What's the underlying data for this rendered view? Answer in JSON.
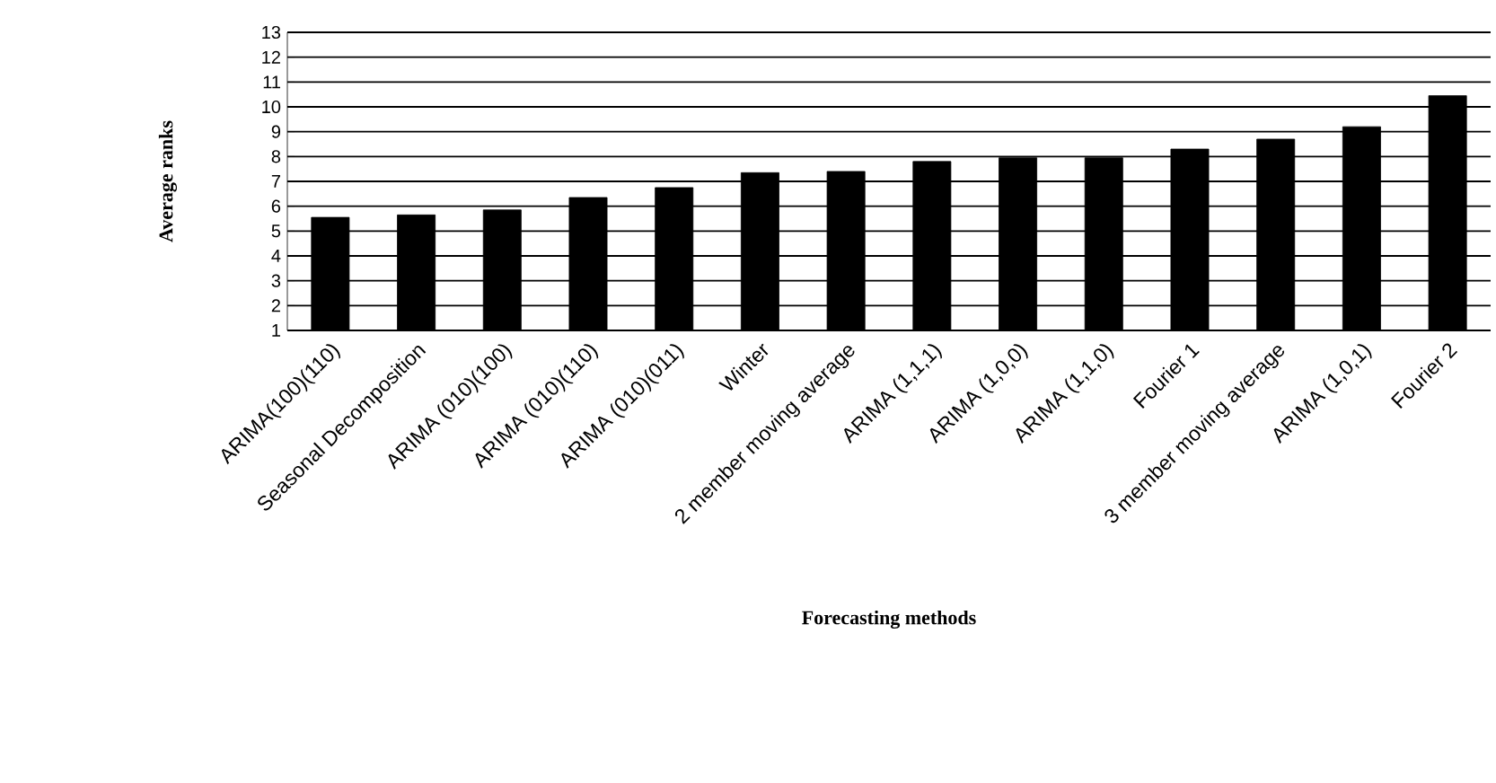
{
  "chart_data": {
    "type": "bar",
    "xlabel": "Forecasting methods",
    "ylabel": "Average ranks",
    "categories": [
      "ARIMA(100)(110)",
      "Seasonal Decomposition",
      "ARIMA (010)(100)",
      "ARIMA (010)(110)",
      "ARIMA (010)(011)",
      "Winter",
      "2 member moving average",
      "ARIMA (1,1,1)",
      "ARIMA (1,0,0)",
      "ARIMA (1,1,0)",
      "Fourier 1",
      "3 member moving average",
      "ARIMA (1,0,1)",
      "Fourier 2"
    ],
    "values": [
      5.55,
      5.65,
      5.85,
      6.35,
      6.75,
      7.35,
      7.4,
      7.8,
      7.95,
      7.95,
      8.3,
      8.7,
      9.2,
      10.45
    ],
    "color": "#000000",
    "ylim": [
      1,
      13
    ],
    "yticks": [
      1,
      2,
      3,
      4,
      5,
      6,
      7,
      8,
      9,
      10,
      11,
      12,
      13
    ],
    "grid": "y"
  }
}
